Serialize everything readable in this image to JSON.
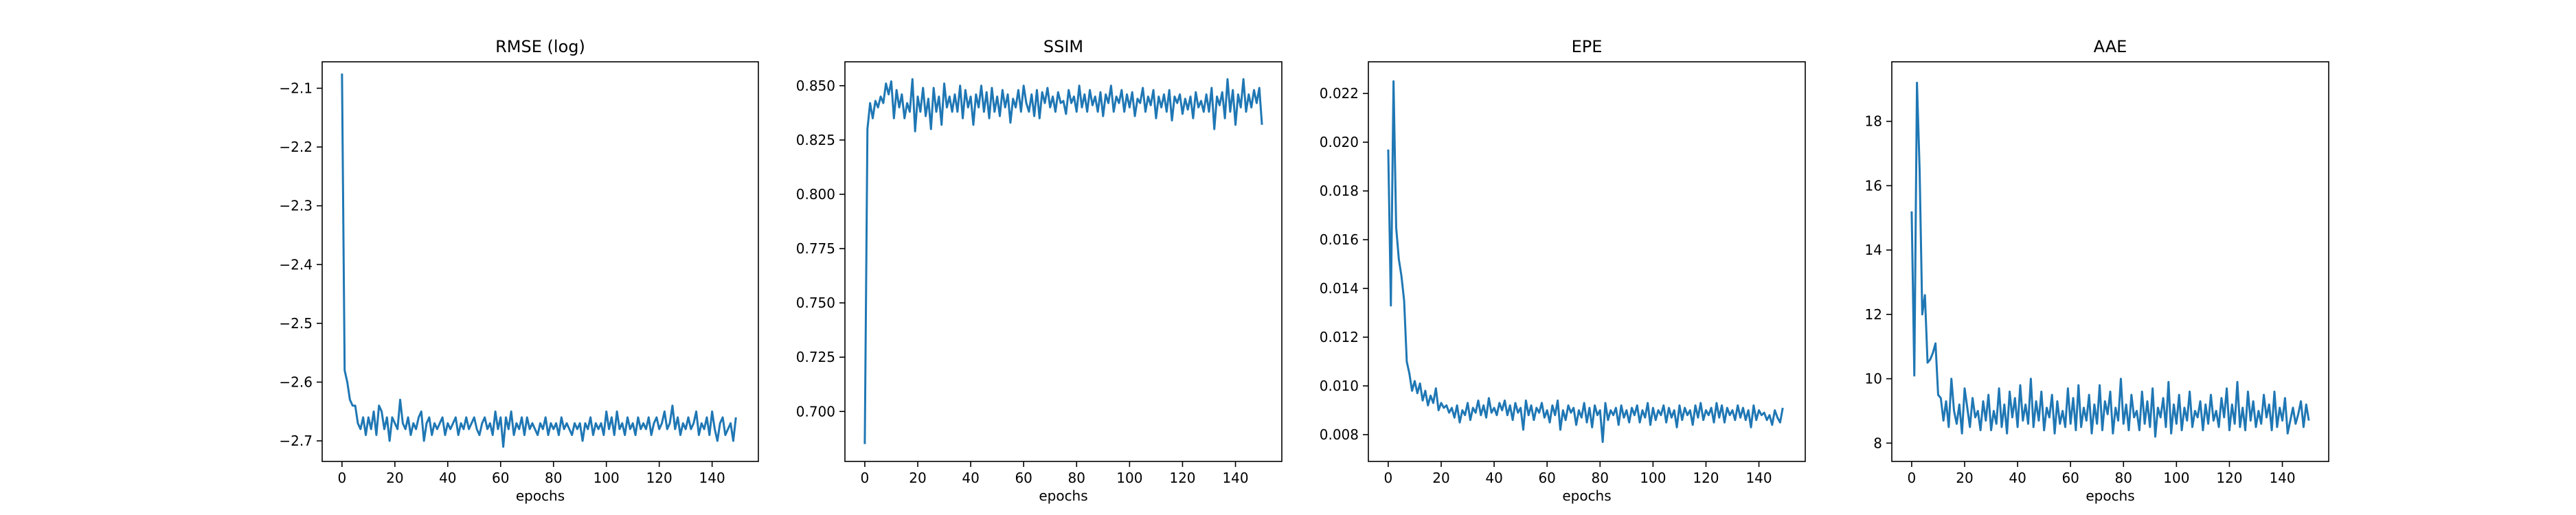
{
  "chart_data": [
    {
      "type": "line",
      "title": "RMSE (log)",
      "xlabel": "epochs",
      "ylabel": "",
      "xlim": [
        -7.5,
        157.5
      ],
      "ylim": [
        -2.735,
        -2.055
      ],
      "xticks": [
        0,
        20,
        40,
        60,
        80,
        100,
        120,
        140
      ],
      "yticks": [
        -2.7,
        -2.6,
        -2.5,
        -2.4,
        -2.3,
        -2.2,
        -2.1
      ],
      "ytick_labels": [
        "−2.7",
        "−2.6",
        "−2.5",
        "−2.4",
        "−2.3",
        "−2.2",
        "−2.1"
      ],
      "grid": false,
      "color": "#1f77b4",
      "series": [
        {
          "x_start": 0,
          "x_step": 1,
          "values": [
            -2.075,
            -2.58,
            -2.6,
            -2.63,
            -2.64,
            -2.64,
            -2.67,
            -2.68,
            -2.66,
            -2.69,
            -2.66,
            -2.68,
            -2.65,
            -2.69,
            -2.64,
            -2.65,
            -2.68,
            -2.66,
            -2.7,
            -2.66,
            -2.67,
            -2.68,
            -2.63,
            -2.67,
            -2.68,
            -2.66,
            -2.69,
            -2.67,
            -2.68,
            -2.66,
            -2.65,
            -2.7,
            -2.67,
            -2.66,
            -2.69,
            -2.67,
            -2.68,
            -2.67,
            -2.66,
            -2.69,
            -2.67,
            -2.68,
            -2.67,
            -2.66,
            -2.69,
            -2.67,
            -2.68,
            -2.66,
            -2.68,
            -2.67,
            -2.66,
            -2.68,
            -2.69,
            -2.67,
            -2.66,
            -2.68,
            -2.67,
            -2.69,
            -2.65,
            -2.68,
            -2.66,
            -2.71,
            -2.66,
            -2.68,
            -2.65,
            -2.69,
            -2.67,
            -2.68,
            -2.66,
            -2.69,
            -2.66,
            -2.68,
            -2.67,
            -2.68,
            -2.69,
            -2.67,
            -2.68,
            -2.66,
            -2.69,
            -2.67,
            -2.68,
            -2.67,
            -2.69,
            -2.66,
            -2.68,
            -2.67,
            -2.68,
            -2.69,
            -2.67,
            -2.68,
            -2.67,
            -2.7,
            -2.67,
            -2.68,
            -2.66,
            -2.69,
            -2.67,
            -2.68,
            -2.67,
            -2.69,
            -2.65,
            -2.68,
            -2.66,
            -2.69,
            -2.65,
            -2.68,
            -2.67,
            -2.69,
            -2.66,
            -2.68,
            -2.67,
            -2.69,
            -2.66,
            -2.68,
            -2.67,
            -2.68,
            -2.66,
            -2.69,
            -2.67,
            -2.66,
            -2.68,
            -2.67,
            -2.65,
            -2.68,
            -2.67,
            -2.64,
            -2.68,
            -2.66,
            -2.69,
            -2.67,
            -2.68,
            -2.66,
            -2.68,
            -2.67,
            -2.65,
            -2.69,
            -2.67,
            -2.68,
            -2.66,
            -2.69,
            -2.65,
            -2.68,
            -2.7,
            -2.67,
            -2.66,
            -2.69,
            -2.68,
            -2.67,
            -2.7,
            -2.66
          ]
        }
      ]
    },
    {
      "type": "line",
      "title": "SSIM",
      "xlabel": "epochs",
      "ylabel": "",
      "xlim": [
        -7.5,
        157.5
      ],
      "ylim": [
        0.677,
        0.861
      ],
      "xticks": [
        0,
        20,
        40,
        60,
        80,
        100,
        120,
        140
      ],
      "yticks": [
        0.7,
        0.725,
        0.75,
        0.775,
        0.8,
        0.825,
        0.85
      ],
      "ytick_labels": [
        "0.700",
        "0.725",
        "0.750",
        "0.775",
        "0.800",
        "0.825",
        "0.850"
      ],
      "grid": false,
      "color": "#1f77b4",
      "series": [
        {
          "x_start": 0,
          "x_step": 1,
          "values": [
            0.685,
            0.83,
            0.842,
            0.835,
            0.843,
            0.84,
            0.845,
            0.842,
            0.851,
            0.846,
            0.852,
            0.835,
            0.848,
            0.84,
            0.846,
            0.835,
            0.842,
            0.838,
            0.853,
            0.829,
            0.845,
            0.838,
            0.849,
            0.836,
            0.844,
            0.83,
            0.849,
            0.838,
            0.845,
            0.832,
            0.851,
            0.84,
            0.845,
            0.838,
            0.846,
            0.838,
            0.85,
            0.835,
            0.848,
            0.84,
            0.845,
            0.832,
            0.846,
            0.84,
            0.85,
            0.838,
            0.847,
            0.835,
            0.849,
            0.838,
            0.845,
            0.836,
            0.848,
            0.84,
            0.846,
            0.833,
            0.844,
            0.84,
            0.848,
            0.838,
            0.85,
            0.842,
            0.838,
            0.846,
            0.836,
            0.848,
            0.835,
            0.847,
            0.842,
            0.849,
            0.84,
            0.845,
            0.838,
            0.847,
            0.842,
            0.843,
            0.837,
            0.848,
            0.842,
            0.845,
            0.838,
            0.85,
            0.84,
            0.846,
            0.838,
            0.848,
            0.841,
            0.845,
            0.838,
            0.847,
            0.836,
            0.846,
            0.842,
            0.85,
            0.838,
            0.845,
            0.842,
            0.848,
            0.838,
            0.846,
            0.84,
            0.847,
            0.836,
            0.844,
            0.842,
            0.849,
            0.838,
            0.845,
            0.841,
            0.848,
            0.835,
            0.845,
            0.84,
            0.846,
            0.838,
            0.848,
            0.834,
            0.845,
            0.842,
            0.846,
            0.837,
            0.844,
            0.839,
            0.845,
            0.835,
            0.847,
            0.84,
            0.843,
            0.838,
            0.846,
            0.838,
            0.849,
            0.83,
            0.845,
            0.841,
            0.847,
            0.835,
            0.853,
            0.838,
            0.848,
            0.832,
            0.846,
            0.84,
            0.853,
            0.838,
            0.846,
            0.84,
            0.848,
            0.842,
            0.849,
            0.832
          ]
        }
      ]
    },
    {
      "type": "line",
      "title": "EPE",
      "xlabel": "epochs",
      "ylabel": "",
      "xlim": [
        -7.5,
        157.5
      ],
      "ylim": [
        0.0069,
        0.0233
      ],
      "xticks": [
        0,
        20,
        40,
        60,
        80,
        100,
        120,
        140
      ],
      "yticks": [
        0.008,
        0.01,
        0.012,
        0.014,
        0.016,
        0.018,
        0.02,
        0.022
      ],
      "ytick_labels": [
        "0.008",
        "0.010",
        "0.012",
        "0.014",
        "0.016",
        "0.018",
        "0.020",
        "0.022"
      ],
      "grid": false,
      "color": "#1f77b4",
      "series": [
        {
          "x_start": 0,
          "x_step": 1,
          "values": [
            0.0197,
            0.0133,
            0.0225,
            0.0165,
            0.0152,
            0.0145,
            0.0135,
            0.011,
            0.0105,
            0.0098,
            0.0102,
            0.0097,
            0.0101,
            0.0094,
            0.0098,
            0.0092,
            0.0096,
            0.0093,
            0.0099,
            0.009,
            0.0093,
            0.0091,
            0.0092,
            0.0089,
            0.0091,
            0.0087,
            0.0092,
            0.0085,
            0.009,
            0.0088,
            0.0093,
            0.0086,
            0.0091,
            0.0089,
            0.0094,
            0.0088,
            0.0092,
            0.0087,
            0.0095,
            0.0089,
            0.0091,
            0.0088,
            0.0093,
            0.009,
            0.0094,
            0.0088,
            0.0092,
            0.0086,
            0.0093,
            0.0089,
            0.0091,
            0.0082,
            0.0094,
            0.0088,
            0.0092,
            0.0086,
            0.0091,
            0.0089,
            0.0093,
            0.0087,
            0.009,
            0.0085,
            0.0092,
            0.0088,
            0.0094,
            0.0082,
            0.009,
            0.0086,
            0.0092,
            0.0089,
            0.0091,
            0.0084,
            0.009,
            0.0087,
            0.0093,
            0.0085,
            0.0091,
            0.0083,
            0.0092,
            0.0088,
            0.009,
            0.0077,
            0.0093,
            0.0086,
            0.009,
            0.0088,
            0.0091,
            0.0084,
            0.0092,
            0.0087,
            0.009,
            0.0085,
            0.0091,
            0.0088,
            0.0092,
            0.0085,
            0.009,
            0.0087,
            0.0093,
            0.0084,
            0.0091,
            0.0086,
            0.009,
            0.0088,
            0.0092,
            0.0085,
            0.0091,
            0.0087,
            0.009,
            0.0083,
            0.0092,
            0.0086,
            0.0091,
            0.0088,
            0.009,
            0.0084,
            0.0092,
            0.0087,
            0.0093,
            0.0086,
            0.009,
            0.0088,
            0.0091,
            0.0085,
            0.0093,
            0.0087,
            0.0092,
            0.0085,
            0.0091,
            0.0088,
            0.009,
            0.0086,
            0.0092,
            0.0087,
            0.0091,
            0.0086,
            0.009,
            0.0083,
            0.0092,
            0.0086,
            0.009,
            0.0088,
            0.0089,
            0.0086,
            0.0088,
            0.0084,
            0.009,
            0.0087,
            0.0085,
            0.0091
          ]
        }
      ]
    },
    {
      "type": "line",
      "title": "AAE",
      "xlabel": "epochs",
      "ylabel": "",
      "xlim": [
        -7.5,
        157.5
      ],
      "ylim": [
        7.43,
        19.85
      ],
      "xticks": [
        0,
        20,
        40,
        60,
        80,
        100,
        120,
        140
      ],
      "yticks": [
        8,
        10,
        12,
        14,
        16,
        18
      ],
      "ytick_labels": [
        "8",
        "10",
        "12",
        "14",
        "16",
        "18"
      ],
      "grid": false,
      "color": "#1f77b4",
      "series": [
        {
          "x_start": 0,
          "x_step": 1,
          "values": [
            15.2,
            10.1,
            19.2,
            16.5,
            12.0,
            12.6,
            10.5,
            10.6,
            10.8,
            11.1,
            9.5,
            9.4,
            8.7,
            9.3,
            8.5,
            10.0,
            9.0,
            8.6,
            9.2,
            8.3,
            9.7,
            9.1,
            8.5,
            9.4,
            8.8,
            9.0,
            8.4,
            9.3,
            8.7,
            9.5,
            8.4,
            9.0,
            8.6,
            9.7,
            8.5,
            9.2,
            8.3,
            9.6,
            8.8,
            9.4,
            8.5,
            9.8,
            8.7,
            9.2,
            8.6,
            10.0,
            8.5,
            9.3,
            8.7,
            9.6,
            8.4,
            9.1,
            8.8,
            9.5,
            8.3,
            9.3,
            8.6,
            9.0,
            8.5,
            9.7,
            8.6,
            9.4,
            8.4,
            9.8,
            8.5,
            9.1,
            8.7,
            9.5,
            8.3,
            9.2,
            8.6,
            9.8,
            8.4,
            9.3,
            8.9,
            9.6,
            8.3,
            9.1,
            8.7,
            10.0,
            8.6,
            9.2,
            8.4,
            9.5,
            8.8,
            9.0,
            8.4,
            9.6,
            8.6,
            9.3,
            8.5,
            9.7,
            8.2,
            9.1,
            8.8,
            9.4,
            8.5,
            9.9,
            8.3,
            9.2,
            8.6,
            9.5,
            8.4,
            9.1,
            8.7,
            9.6,
            8.5,
            9.0,
            8.8,
            9.3,
            8.4,
            9.2,
            8.6,
            9.5,
            8.7,
            9.0,
            8.5,
            9.4,
            8.8,
            9.7,
            8.4,
            9.2,
            8.6,
            9.9,
            8.5,
            9.1,
            8.4,
            9.6,
            8.7,
            9.3,
            8.5,
            9.0,
            8.6,
            9.5,
            8.8,
            9.2,
            8.4,
            9.6,
            8.5,
            9.1,
            8.7,
            9.4,
            8.3,
            8.7,
            9.1,
            8.6,
            8.9,
            9.3,
            8.5,
            9.2,
            8.7
          ]
        }
      ]
    }
  ]
}
